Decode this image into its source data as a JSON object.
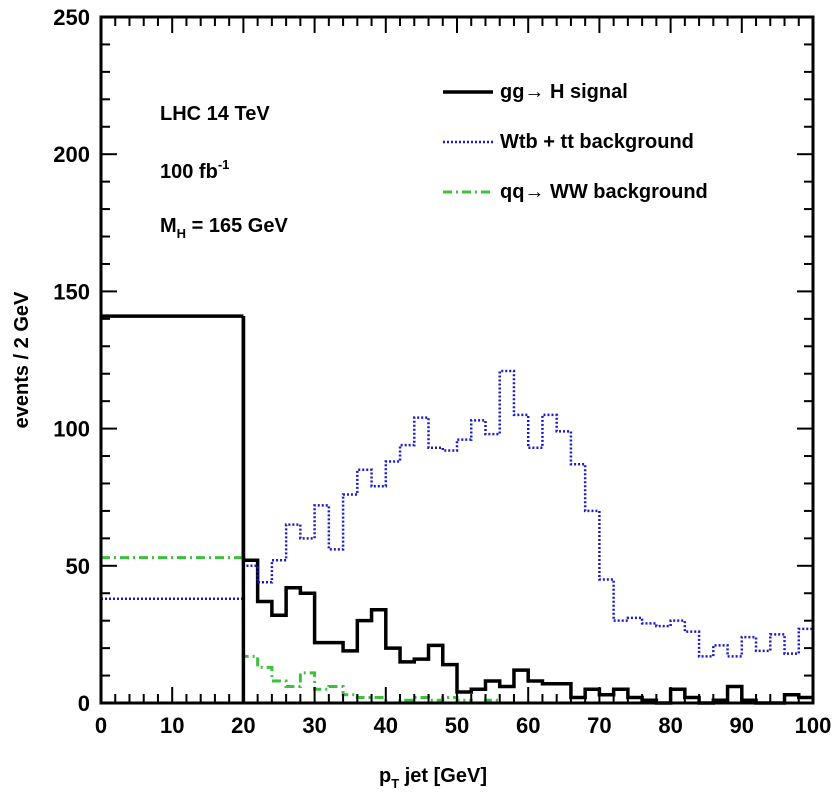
{
  "chart_data": {
    "type": "histogram",
    "xlabel_main": "p",
    "xlabel_sub": "T",
    "xlabel_rest": " jet [GeV]",
    "ylabel": "events / 2 GeV",
    "xlim": [
      0,
      100
    ],
    "ylim": [
      0,
      250
    ],
    "x_ticks": [
      0,
      10,
      20,
      30,
      40,
      50,
      60,
      70,
      80,
      90,
      100
    ],
    "y_ticks": [
      0,
      50,
      100,
      150,
      200,
      250
    ],
    "annotations": {
      "line1": "LHC 14 TeV",
      "line2_main": "100 fb",
      "line2_sup": "-1",
      "line3_main": "M",
      "line3_sub": "H",
      "line3_rest": " = 165 GeV"
    },
    "legend_position": "top-right",
    "series": [
      {
        "name": "gg→ H signal",
        "color": "#000000",
        "style": "solid",
        "first_bin": {
          "x": [
            0,
            20
          ],
          "y": 141
        },
        "bin_edges_start": 20,
        "bin_width": 2,
        "values": [
          52,
          37,
          32,
          42,
          40,
          22,
          22,
          19,
          30,
          34,
          20,
          15,
          16,
          21,
          14,
          4,
          5,
          8,
          6,
          12,
          8,
          7,
          7,
          2,
          5,
          3,
          5,
          2,
          1,
          0,
          5,
          2,
          0,
          1,
          6,
          1,
          0,
          0,
          3,
          2
        ]
      },
      {
        "name": "Wtb + tt background",
        "color": "#1a1acc",
        "style": "dotted",
        "first_bin": {
          "x": [
            0,
            20
          ],
          "y": 38
        },
        "bin_edges_start": 20,
        "bin_width": 2,
        "values": [
          50,
          44,
          52,
          65,
          60,
          72,
          56,
          76,
          85,
          79,
          88,
          94,
          104,
          93,
          92,
          96,
          103,
          98,
          121,
          105,
          93,
          105,
          99,
          87,
          70,
          45,
          30,
          31,
          29,
          28,
          30,
          26,
          17,
          21,
          17,
          24,
          19,
          25,
          18,
          27
        ]
      },
      {
        "name": "qq→ WW background",
        "color": "#3dc13d",
        "style": "dashdot",
        "first_bin": {
          "x": [
            0,
            20
          ],
          "y": 53
        },
        "bin_edges_start": 20,
        "bin_width": 2,
        "values": [
          17,
          13,
          8,
          6,
          11,
          5,
          6,
          3,
          2,
          2,
          0,
          1,
          2,
          1,
          2,
          1,
          0,
          1,
          0,
          0,
          0,
          0,
          0,
          0,
          0,
          0,
          0,
          0,
          0,
          0,
          0,
          0,
          0,
          0,
          0,
          0,
          0,
          0,
          0,
          0
        ]
      }
    ]
  }
}
